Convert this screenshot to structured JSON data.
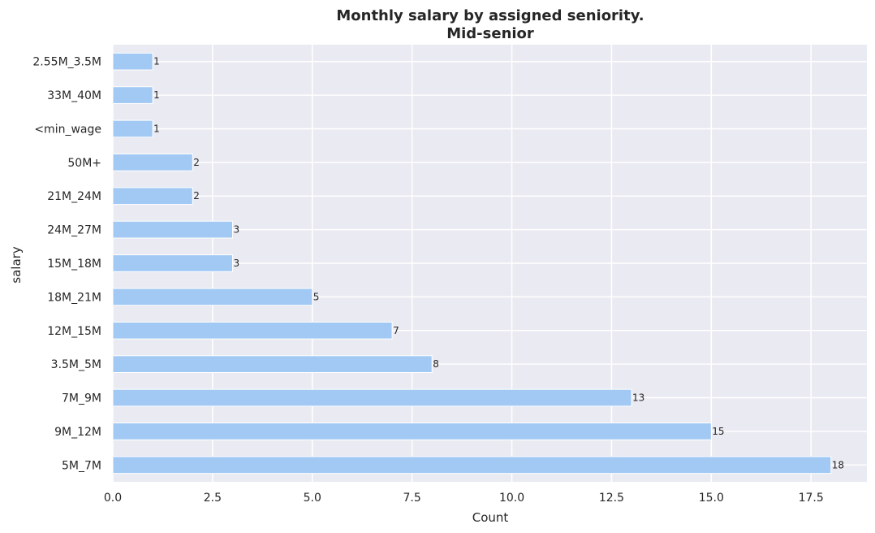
{
  "chart_data": {
    "type": "bar",
    "orientation": "horizontal",
    "title_lines": [
      "Monthly salary by assigned seniority.",
      "Mid-senior"
    ],
    "xlabel": "Count",
    "ylabel": "salary",
    "categories": [
      "5M_7M",
      "9M_12M",
      "7M_9M",
      "3.5M_5M",
      "12M_15M",
      "18M_21M",
      "15M_18M",
      "24M_27M",
      "21M_24M",
      "50M+",
      "<min_wage",
      "33M_40M",
      "2.55M_3.5M"
    ],
    "values": [
      18,
      15,
      13,
      8,
      7,
      5,
      3,
      3,
      2,
      2,
      1,
      1,
      1
    ],
    "xlim": [
      0,
      18.9
    ],
    "xticks": [
      "0.0",
      "2.5",
      "5.0",
      "7.5",
      "10.0",
      "12.5",
      "15.0",
      "17.5"
    ],
    "grid": true,
    "colors": {
      "bar": "#a1c9f4",
      "background": "#eaeaf2",
      "grid": "#ffffff",
      "text": "#262626"
    }
  }
}
